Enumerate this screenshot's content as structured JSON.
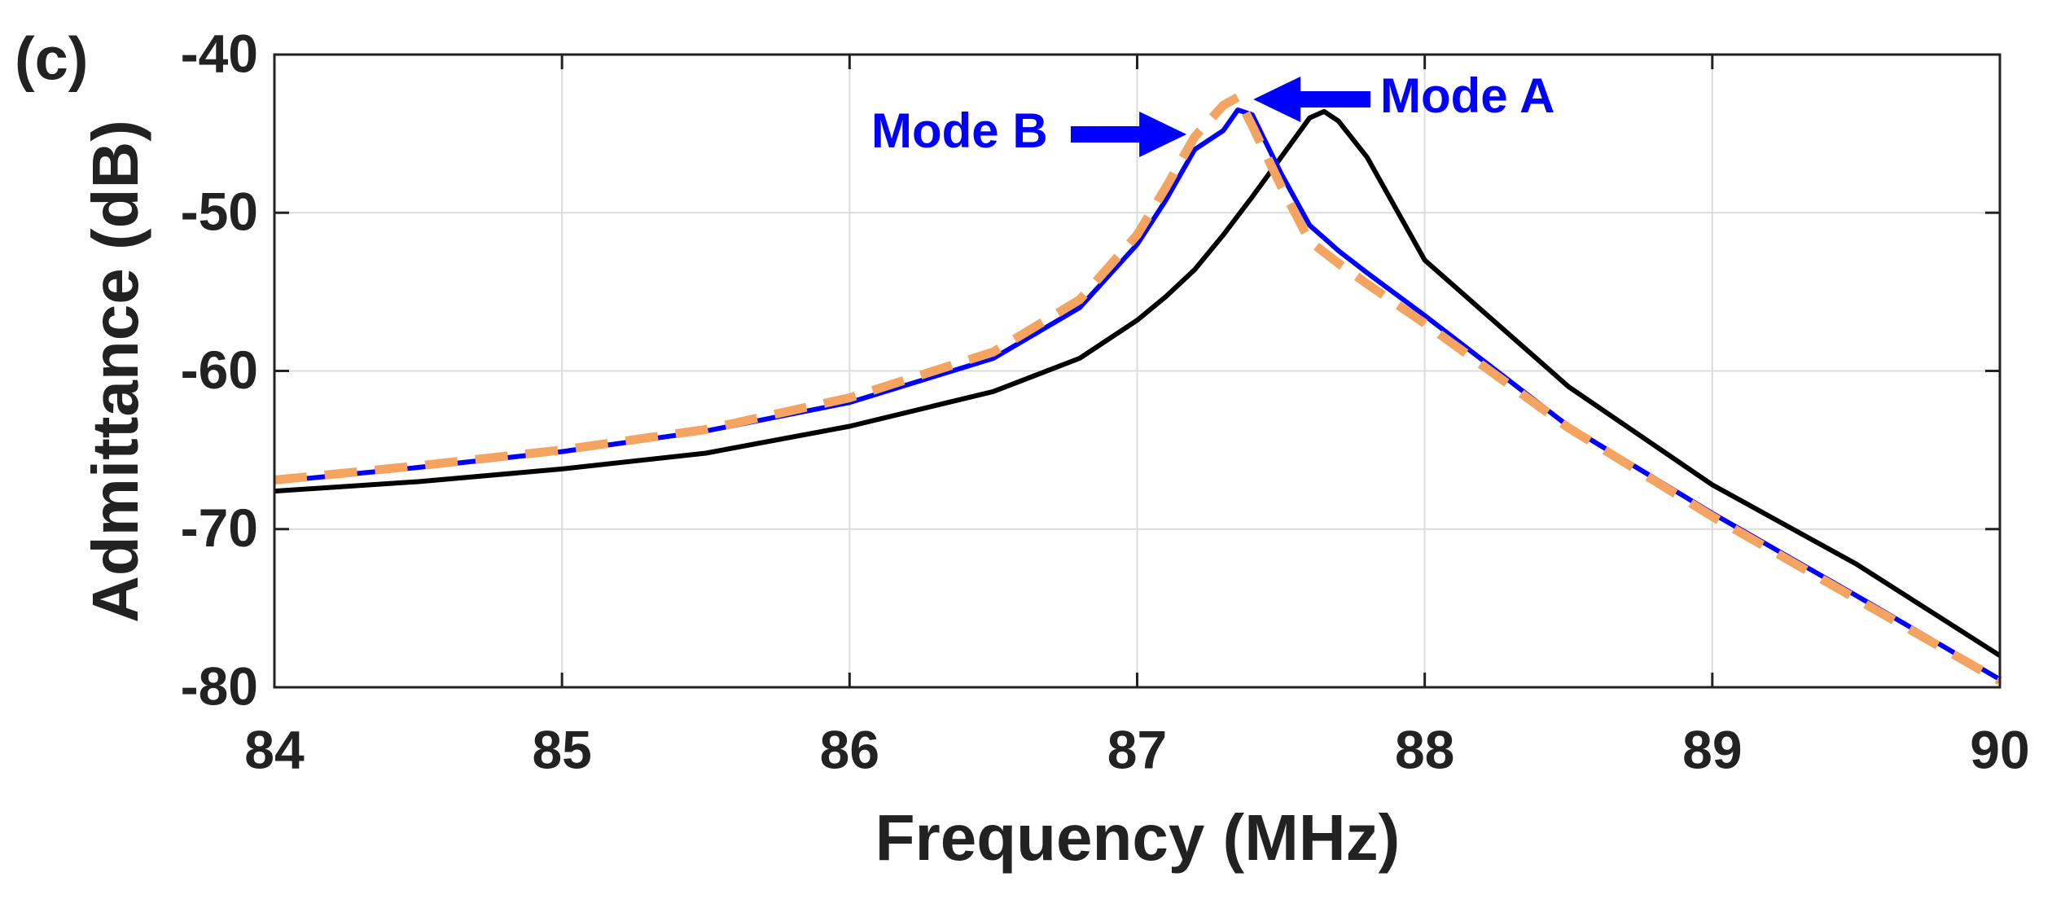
{
  "chart_data": {
    "type": "line",
    "label": "(c)",
    "x_label": "Frequency (MHz)",
    "y_label": "Admittance (dB)",
    "x": [
      84,
      84.5,
      85,
      85.5,
      86,
      86.5,
      86.8,
      87,
      87.1,
      87.2,
      87.3,
      87.35,
      87.4,
      87.5,
      87.6,
      87.65,
      87.7,
      87.8,
      88,
      88.5,
      89,
      89.5,
      90
    ],
    "series": [
      {
        "color": "#000000",
        "dashed": false,
        "values": [
          -67.6,
          -67.0,
          -66.2,
          -65.2,
          -63.5,
          -61.3,
          -59.2,
          -56.8,
          -55.3,
          -53.6,
          -51.4,
          -50.2,
          -49,
          -46.5,
          -44,
          -43.6,
          -44.2,
          -46.5,
          -53,
          -61,
          -67.2,
          -72.2,
          -78
        ]
      },
      {
        "color": "#0000ff",
        "dashed": false,
        "values": [
          -67,
          -66.1,
          -65.1,
          -63.8,
          -62,
          -59.2,
          -56,
          -52,
          -49.2,
          -46,
          -44.8,
          -43.5,
          -43.8,
          -47.5,
          -50.8,
          -51.6,
          -52.4,
          -53.8,
          -56.5,
          -63.5,
          -69,
          -74.2,
          -79.5
        ]
      },
      {
        "color": "#f4a460",
        "dashed": true,
        "values": [
          -66.9,
          -66,
          -65,
          -63.7,
          -61.7,
          -58.8,
          -55.5,
          -51.4,
          -48.4,
          -45.2,
          -43.2,
          -42.7,
          -44.5,
          -48.3,
          -51.8,
          -52.5,
          -53.2,
          -54.5,
          -57,
          -63.6,
          -69.2,
          -74.4,
          -79.6
        ]
      }
    ],
    "annotations": [
      {
        "text": "Mode B",
        "x": 87.2,
        "y": -44.8,
        "color": "#0000ff"
      },
      {
        "text": "Mode A",
        "x": 87.37,
        "y": -43.3,
        "color": "#0000ff"
      }
    ],
    "xlim": [
      84,
      90
    ],
    "xticks": [
      84,
      85,
      86,
      87,
      88,
      89,
      90
    ],
    "ylim": [
      -80,
      -40
    ],
    "yticks": [
      -80,
      -70,
      -60,
      -50,
      -40
    ],
    "grid": true
  }
}
